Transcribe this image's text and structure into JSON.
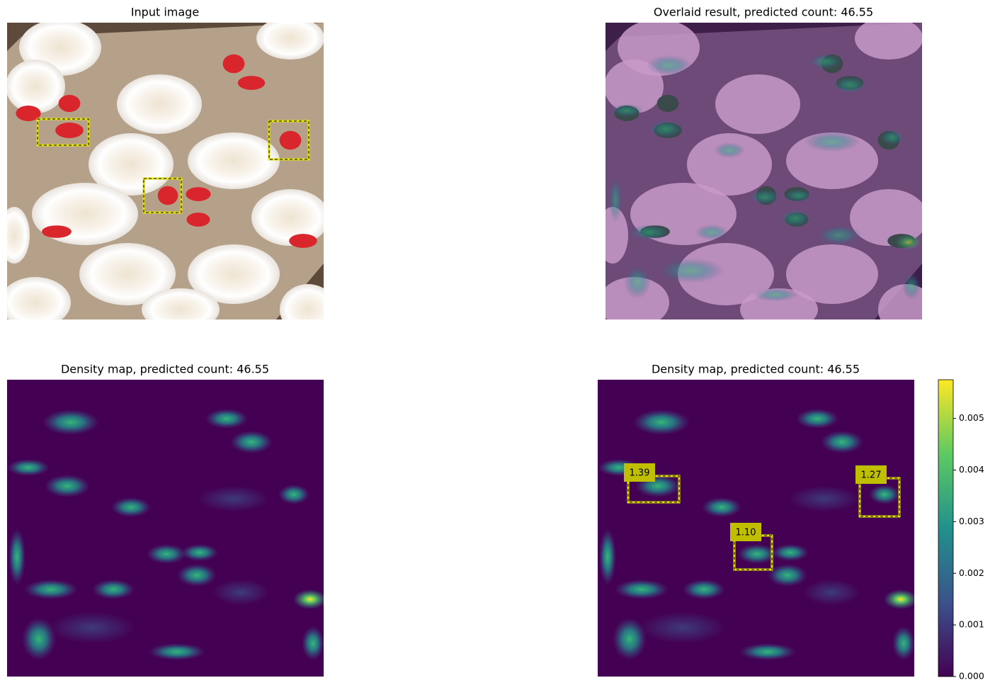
{
  "chart_data": [
    {
      "type": "image",
      "title": "Input image"
    },
    {
      "type": "image",
      "title": "Overlaid result, predicted count: 46.55"
    },
    {
      "type": "image",
      "title": "Density map, predicted count: 46.55"
    },
    {
      "type": "image",
      "title": "Density map, predicted count: 46.55",
      "boxes": {
        "values": [
          1.39,
          1.27,
          1.1
        ],
        "value_labels": [
          "1.39",
          "1.27",
          "1.10"
        ]
      },
      "colorbar": {
        "ylim": [
          0,
          0.00575
        ],
        "yticks": [
          {
            "value": 0,
            "label": "0.000"
          },
          {
            "value": 0.001,
            "label": "0.001"
          },
          {
            "value": 0.002,
            "label": "0.002"
          },
          {
            "value": 0.003,
            "label": "0.003"
          },
          {
            "value": 0.004,
            "label": "0.004"
          },
          {
            "value": 0.005,
            "label": "0.005"
          }
        ]
      }
    }
  ]
}
